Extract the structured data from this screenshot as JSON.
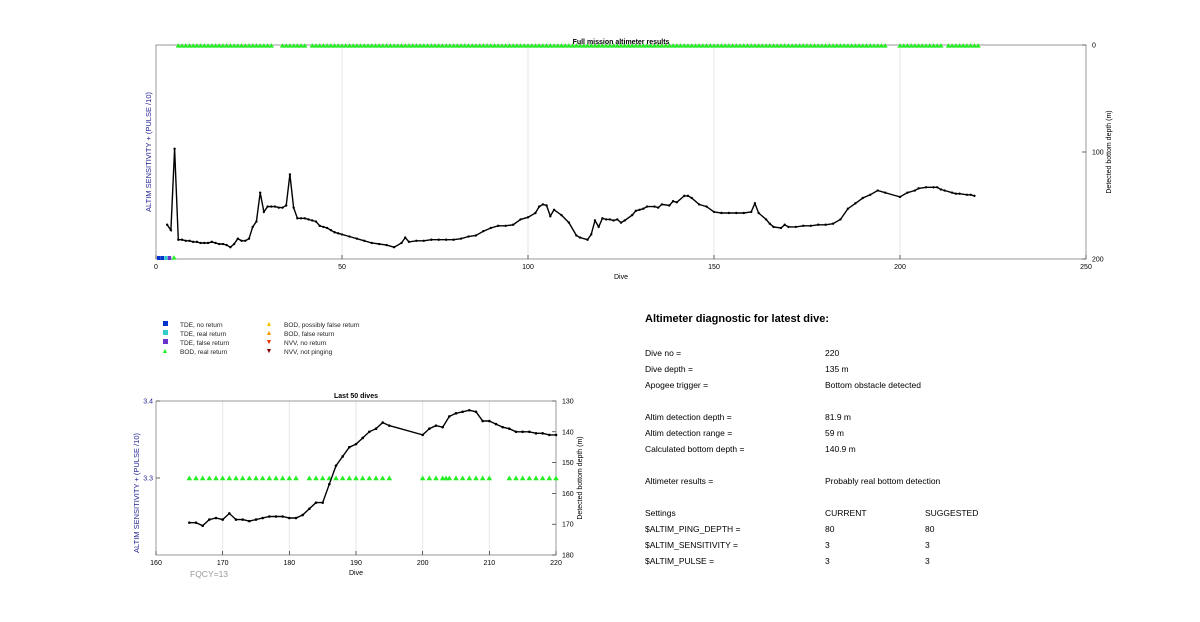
{
  "colors": {
    "line": "#000000",
    "grid": "#e6e6e6",
    "left_axis_label": "#1f1f8f",
    "bod_real": "#22ee22",
    "tde_no_return": "#0033cc",
    "tde_real_return": "#33cccc",
    "tde_false_return": "#6633cc",
    "bod_possibly_false": "#f2c200",
    "bod_false": "#ee9900",
    "nvv_no_return": "#ee3300",
    "nvv_not_pinging": "#880000"
  },
  "chart_data": [
    {
      "type": "line",
      "title": "Full mission altimeter results",
      "xlabel": "Dive",
      "ylabel_left": "ALTIM SENSITIVITY + (PULSE /10)",
      "ylabel_right": "Detected bottom depth (m)",
      "xlim": [
        0,
        250
      ],
      "ylim_right": [
        0,
        200
      ],
      "right_axis_reversed": true,
      "x_ticks": [
        "0",
        "50",
        "100",
        "150",
        "200",
        "250"
      ],
      "y_ticks_right": [
        "0",
        "100",
        "200"
      ],
      "grid": true,
      "bottom_depth_series": {
        "name": "Detected bottom depth",
        "points": [
          [
            3,
            168
          ],
          [
            4,
            173
          ],
          [
            5,
            97
          ],
          [
            6,
            182
          ],
          [
            7,
            182
          ],
          [
            8,
            183
          ],
          [
            9,
            183
          ],
          [
            10,
            184
          ],
          [
            11,
            184
          ],
          [
            12,
            185
          ],
          [
            13,
            185
          ],
          [
            14,
            185
          ],
          [
            15,
            184
          ],
          [
            16,
            185
          ],
          [
            17,
            186
          ],
          [
            18,
            186
          ],
          [
            19,
            187
          ],
          [
            20,
            189
          ],
          [
            21,
            186
          ],
          [
            22,
            181
          ],
          [
            23,
            183
          ],
          [
            24,
            183
          ],
          [
            25,
            181
          ],
          [
            26,
            170
          ],
          [
            27,
            165
          ],
          [
            28,
            138
          ],
          [
            29,
            156
          ],
          [
            30,
            151
          ],
          [
            31,
            151
          ],
          [
            32,
            151
          ],
          [
            33,
            152
          ],
          [
            34,
            152
          ],
          [
            35,
            150
          ],
          [
            36,
            121
          ],
          [
            37,
            152
          ],
          [
            38,
            162
          ],
          [
            39,
            162
          ],
          [
            40,
            162
          ],
          [
            41,
            163
          ],
          [
            42,
            164
          ],
          [
            43,
            165
          ],
          [
            44,
            169
          ],
          [
            45,
            170
          ],
          [
            46,
            171
          ],
          [
            47,
            173
          ],
          [
            48,
            175
          ],
          [
            49,
            176
          ],
          [
            50,
            177
          ],
          [
            52,
            179
          ],
          [
            54,
            181
          ],
          [
            56,
            183
          ],
          [
            58,
            185
          ],
          [
            60,
            186
          ],
          [
            62,
            187
          ],
          [
            64,
            189
          ],
          [
            66,
            185
          ],
          [
            67,
            180
          ],
          [
            68,
            184
          ],
          [
            70,
            183
          ],
          [
            72,
            183
          ],
          [
            74,
            182
          ],
          [
            76,
            182
          ],
          [
            78,
            182
          ],
          [
            80,
            182
          ],
          [
            82,
            181
          ],
          [
            84,
            179
          ],
          [
            86,
            178
          ],
          [
            88,
            174
          ],
          [
            90,
            171
          ],
          [
            92,
            169
          ],
          [
            94,
            169
          ],
          [
            96,
            168
          ],
          [
            98,
            163
          ],
          [
            100,
            161
          ],
          [
            102,
            157
          ],
          [
            103,
            151
          ],
          [
            104,
            149
          ],
          [
            105,
            150
          ],
          [
            106,
            160
          ],
          [
            107,
            154
          ],
          [
            109,
            159
          ],
          [
            111,
            166
          ],
          [
            113,
            178
          ],
          [
            114,
            180
          ],
          [
            116,
            182
          ],
          [
            117,
            177
          ],
          [
            118,
            164
          ],
          [
            119,
            170
          ],
          [
            120,
            162
          ],
          [
            121,
            163
          ],
          [
            122,
            163
          ],
          [
            123,
            164
          ],
          [
            124,
            163
          ],
          [
            125,
            166
          ],
          [
            126,
            164
          ],
          [
            128,
            159
          ],
          [
            129,
            155
          ],
          [
            130,
            154
          ],
          [
            131,
            153
          ],
          [
            132,
            151
          ],
          [
            134,
            151
          ],
          [
            135,
            152
          ],
          [
            136,
            149
          ],
          [
            138,
            150
          ],
          [
            139,
            146
          ],
          [
            140,
            147
          ],
          [
            142,
            141
          ],
          [
            143,
            141
          ],
          [
            144,
            143
          ],
          [
            146,
            149
          ],
          [
            148,
            151
          ],
          [
            150,
            156
          ],
          [
            152,
            157
          ],
          [
            154,
            157
          ],
          [
            156,
            157
          ],
          [
            158,
            157
          ],
          [
            160,
            156
          ],
          [
            161,
            148
          ],
          [
            162,
            157
          ],
          [
            164,
            163
          ],
          [
            165,
            167
          ],
          [
            166,
            170
          ],
          [
            168,
            171
          ],
          [
            169,
            168
          ],
          [
            170,
            170
          ],
          [
            172,
            170
          ],
          [
            174,
            169
          ],
          [
            176,
            169
          ],
          [
            178,
            168
          ],
          [
            180,
            168
          ],
          [
            182,
            167
          ],
          [
            184,
            163
          ],
          [
            186,
            153
          ],
          [
            188,
            148
          ],
          [
            190,
            143
          ],
          [
            192,
            140
          ],
          [
            194,
            136
          ],
          [
            196,
            138
          ],
          [
            200,
            142
          ],
          [
            202,
            138
          ],
          [
            204,
            136
          ],
          [
            205,
            134
          ],
          [
            207,
            133
          ],
          [
            209,
            133
          ],
          [
            210,
            133
          ],
          [
            211,
            135
          ],
          [
            212,
            136
          ],
          [
            214,
            138
          ],
          [
            215,
            139
          ],
          [
            216,
            139
          ],
          [
            218,
            140
          ],
          [
            219,
            140
          ],
          [
            220,
            141
          ]
        ]
      },
      "bod_real_return_markers_dives": "approx. 6–31, 34–40, 42–106, 107–183, 184–196, 200–211, 213–221",
      "legend_marker_x0": [
        1.5,
        2.5,
        3.5,
        4.5,
        5.5
      ]
    },
    {
      "type": "line",
      "title": "Last 50 dives",
      "xlabel": "Dive",
      "ylabel_left": "ALTIM SENSITIVITY + (PULSE /10)",
      "ylabel_right": "Detected bottom depth (m)",
      "xlim": [
        160,
        220
      ],
      "ylim_left": [
        3.2,
        3.4
      ],
      "ylim_right": [
        130,
        180
      ],
      "right_axis_reversed": true,
      "x_ticks": [
        "160",
        "170",
        "180",
        "190",
        "200",
        "210",
        "220"
      ],
      "y_ticks_left": [
        "3.3",
        "3.4"
      ],
      "y_ticks_right": [
        "130",
        "140",
        "150",
        "160",
        "170",
        "180"
      ],
      "grid": true,
      "bod_real_return_dives": [
        165,
        166,
        167,
        168,
        169,
        170,
        171,
        172,
        173,
        174,
        175,
        176,
        177,
        178,
        179,
        180,
        181,
        183,
        184,
        185,
        186,
        187,
        188,
        189,
        190,
        191,
        192,
        193,
        194,
        195,
        200,
        201,
        202,
        203,
        203.5,
        204,
        205,
        206,
        207,
        208,
        209,
        210,
        213,
        214,
        215,
        216,
        217,
        218,
        219,
        220
      ],
      "bod_real_return_level": 3.3,
      "bottom_depth_series": {
        "name": "Detected bottom depth",
        "points": [
          [
            165,
            169.5
          ],
          [
            166,
            169.5
          ],
          [
            167,
            170.5
          ],
          [
            168,
            168.5
          ],
          [
            169,
            168
          ],
          [
            170,
            168.5
          ],
          [
            171,
            166.5
          ],
          [
            172,
            168.5
          ],
          [
            173,
            168.5
          ],
          [
            174,
            169
          ],
          [
            175,
            168.5
          ],
          [
            176,
            168
          ],
          [
            177,
            167.5
          ],
          [
            178,
            167.5
          ],
          [
            179,
            167.5
          ],
          [
            180,
            168
          ],
          [
            181,
            168
          ],
          [
            182,
            167
          ],
          [
            183,
            165
          ],
          [
            184,
            163
          ],
          [
            185,
            163
          ],
          [
            186,
            157
          ],
          [
            187,
            151
          ],
          [
            188,
            148
          ],
          [
            189,
            145
          ],
          [
            190,
            144
          ],
          [
            191,
            142
          ],
          [
            192,
            140
          ],
          [
            193,
            139
          ],
          [
            194,
            137
          ],
          [
            195,
            138
          ],
          [
            200,
            141
          ],
          [
            201,
            139
          ],
          [
            202,
            138
          ],
          [
            203,
            138.5
          ],
          [
            204,
            135
          ],
          [
            205,
            134
          ],
          [
            206,
            133.5
          ],
          [
            207,
            133
          ],
          [
            208,
            133.5
          ],
          [
            209,
            136.5
          ],
          [
            210,
            136.5
          ],
          [
            211,
            137.5
          ],
          [
            212,
            138.5
          ],
          [
            213,
            139
          ],
          [
            214,
            140
          ],
          [
            215,
            140
          ],
          [
            216,
            140
          ],
          [
            217,
            140.5
          ],
          [
            218,
            140.5
          ],
          [
            219,
            141
          ],
          [
            220,
            141
          ]
        ]
      }
    }
  ],
  "legend": [
    {
      "symbol": "square",
      "color_key": "tde_no_return",
      "label": "TDE, no return"
    },
    {
      "symbol": "square",
      "color_key": "tde_real_return",
      "label": "TDE, real return"
    },
    {
      "symbol": "square",
      "color_key": "tde_false_return",
      "label": "TDE, false return"
    },
    {
      "symbol": "triangle-up",
      "color_key": "bod_real",
      "label": "BOD, real return"
    },
    {
      "symbol": "triangle-up",
      "color_key": "bod_possibly_false",
      "label": "BOD, possibly false return"
    },
    {
      "symbol": "triangle-up",
      "color_key": "bod_false",
      "label": "BOD, false return"
    },
    {
      "symbol": "triangle-down",
      "color_key": "nvv_no_return",
      "label": "NVV, no return"
    },
    {
      "symbol": "triangle-down",
      "color_key": "nvv_not_pinging",
      "label": "NVV, not pinging"
    }
  ],
  "fqcy_label": "FQCY=13",
  "diagnostic": {
    "title": "Altimeter diagnostic for latest dive:",
    "rows": [
      {
        "label": "Dive no =",
        "value": "220"
      },
      {
        "label": "Dive depth =",
        "value": "135 m"
      },
      {
        "label": "Apogee trigger =",
        "value": "Bottom obstacle detected"
      },
      {
        "label": "Altim detection depth =",
        "value": "81.9 m"
      },
      {
        "label": "Altim detection range =",
        "value": "59 m"
      },
      {
        "label": "Calculated bottom depth =",
        "value": "140.9 m"
      },
      {
        "label": "Altimeter results =",
        "value": "Probably real bottom detection"
      }
    ],
    "settings_header": {
      "label": "Settings",
      "current": "CURRENT",
      "suggested": "SUGGESTED"
    },
    "settings": [
      {
        "label": "$ALTIM_PING_DEPTH =",
        "current": "80",
        "suggested": "80"
      },
      {
        "label": "$ALTIM_SENSITIVITY =",
        "current": "3",
        "suggested": "3"
      },
      {
        "label": "$ALTIM_PULSE =",
        "current": "3",
        "suggested": "3"
      }
    ]
  }
}
